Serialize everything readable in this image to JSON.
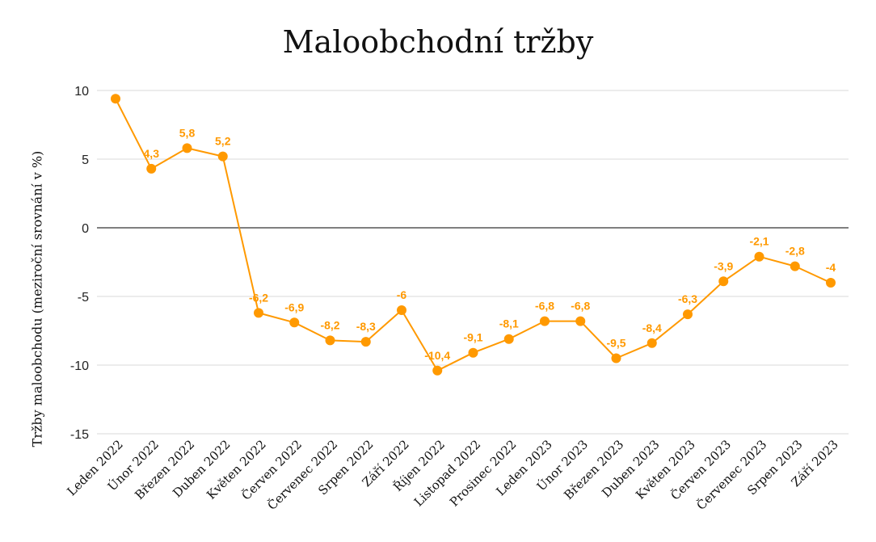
{
  "chart_data": {
    "type": "line",
    "title": "Maloobchodní tržby",
    "xlabel": "",
    "ylabel": "Tržby maloobchodu (meziroční srovnání v %)",
    "ylim": [
      -15,
      10
    ],
    "yticks": [
      "10",
      "5",
      "0",
      "-5",
      "-10",
      "-15"
    ],
    "grid": true,
    "legend": "none",
    "categories": [
      "Leden 2022",
      "Únor 2022",
      "Březen 2022",
      "Duben 2022",
      "Květen 2022",
      "Červen 2022",
      "Červenec 2022",
      "Srpen 2022",
      "Září 2022",
      "Říjen 2022",
      "Listopad 2022",
      "Prosinec 2022",
      "Leden 2023",
      "Únor 2023",
      "Březen 2023",
      "Duben 2023",
      "Květen 2023",
      "Červen 2023",
      "Červenec 2023",
      "Srpen 2023",
      "Září 2023"
    ],
    "series": [
      {
        "values": [
          9.4,
          4.3,
          5.8,
          5.2,
          -6.2,
          -6.9,
          -8.2,
          -8.3,
          -6,
          -10.4,
          -9.1,
          -8.1,
          -6.8,
          -6.8,
          -9.5,
          -8.4,
          -6.3,
          -3.9,
          -2.1,
          -2.8,
          -4
        ],
        "data_labels": [
          "",
          "4,3",
          "5,8",
          "5,2",
          "-6,2",
          "-6,9",
          "-8,2",
          "-8,3",
          "-6",
          "-10,4",
          "-9,1",
          "-8,1",
          "-6,8",
          "-6,8",
          "-9,5",
          "-8,4",
          "-6,3",
          "-3,9",
          "-2,1",
          "-2,8",
          "-4"
        ],
        "color": "#ff9900"
      }
    ],
    "colors": {
      "line": "#ff9900",
      "grid": "#d9d9d9",
      "zero_line": "#333333"
    }
  }
}
